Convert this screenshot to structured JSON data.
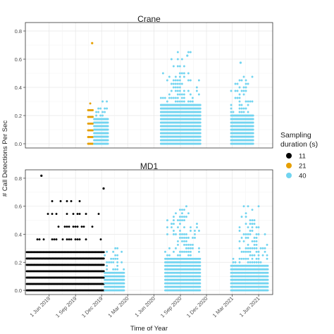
{
  "chart_data": {
    "type": "scatter",
    "x_type": "date",
    "xlabel": "Time of Year",
    "ylabel": "# Call Detections Per Sec",
    "xlim": [
      "2019-03-10",
      "2021-07-20"
    ],
    "ylim": [
      -0.03,
      0.86
    ],
    "x_ticks": [
      {
        "date": "2019-06-01",
        "label": "1 Jun 2019"
      },
      {
        "date": "2019-09-01",
        "label": "1 Sep 2019"
      },
      {
        "date": "2019-12-01",
        "label": "1 Dec 2019"
      },
      {
        "date": "2020-03-01",
        "label": "1 Mar 2020"
      },
      {
        "date": "2020-06-01",
        "label": "1 Jun 2020"
      },
      {
        "date": "2020-09-01",
        "label": "1 Sep 2020"
      },
      {
        "date": "2020-12-01",
        "label": "1 Dec 2020"
      },
      {
        "date": "2021-03-01",
        "label": "1 Mar 2021"
      },
      {
        "date": "2021-06-01",
        "label": "1 Jun 2021"
      }
    ],
    "y_ticks": [
      0.0,
      0.2,
      0.4,
      0.6,
      0.8
    ],
    "y_tick_labels": [
      "0.0",
      "0.2",
      "0.4",
      "0.6",
      "0.8"
    ],
    "grid": true,
    "legend": {
      "title": "Sampling duration (s)",
      "position": "right",
      "items": [
        {
          "label": "11",
          "color": "#000000"
        },
        {
          "label": "21",
          "color": "#E69F00"
        },
        {
          "label": "40",
          "color": "#72D4F0"
        }
      ]
    },
    "panels": [
      {
        "strip": "Crane",
        "series": [
          {
            "name": "21",
            "color": "#E69F00",
            "segments": [
              {
                "start": "2019-10-15",
                "end": "2019-11-03",
                "levels": [
                  0,
                  0.0476,
                  0.0952,
                  0.1429,
                  0.1905,
                  0.2381,
                  0.2857,
                  0.3333,
                  0.381,
                  0.4286
                ],
                "sparse_from": 0.24
              }
            ],
            "extra": [
              {
                "x": "2019-10-29",
                "y": 0.714
              }
            ]
          },
          {
            "name": "40",
            "color": "#72D4F0",
            "segments": [
              {
                "start": "2019-11-05",
                "end": "2019-12-26",
                "levels": [
                  0,
                  0.025,
                  0.05,
                  0.075,
                  0.1,
                  0.125,
                  0.15,
                  0.175,
                  0.2,
                  0.225,
                  0.25,
                  0.3
                ],
                "sparse_from": 0.18
              },
              {
                "start": "2020-06-25",
                "end": "2020-11-10",
                "levels": [
                  0,
                  0.025,
                  0.05,
                  0.075,
                  0.1,
                  0.125,
                  0.15,
                  0.175,
                  0.2,
                  0.225,
                  0.25,
                  0.275,
                  0.3,
                  0.325,
                  0.35,
                  0.375,
                  0.4,
                  0.425,
                  0.45,
                  0.475,
                  0.5,
                  0.55,
                  0.6,
                  0.65
                ],
                "sparse_from": 0.3
              },
              {
                "start": "2021-02-25",
                "end": "2021-05-15",
                "levels": [
                  0,
                  0.025,
                  0.05,
                  0.075,
                  0.1,
                  0.125,
                  0.15,
                  0.175,
                  0.2,
                  0.225,
                  0.25,
                  0.275,
                  0.3,
                  0.325,
                  0.35,
                  0.375,
                  0.4,
                  0.425,
                  0.45,
                  0.475
                ],
                "sparse_from": 0.22
              }
            ],
            "extra": [
              {
                "x": "2020-09-25",
                "y": 0.625
              },
              {
                "x": "2021-03-30",
                "y": 0.575
              }
            ]
          }
        ]
      },
      {
        "strip": "MD1",
        "series": [
          {
            "name": "11",
            "color": "#000000",
            "segments": [
              {
                "start": "2019-03-15",
                "end": "2019-12-10",
                "levels": [
                  0,
                  0.0455,
                  0.0909,
                  0.1364,
                  0.1818,
                  0.2273,
                  0.2727,
                  0.3636,
                  0.4545,
                  0.5455,
                  0.6364
                ],
                "sparse_from": 0.3
              }
            ],
            "extra": [
              {
                "x": "2019-05-05",
                "y": 0.818
              },
              {
                "x": "2019-12-08",
                "y": 0.727
              }
            ]
          },
          {
            "name": "40",
            "color": "#72D4F0",
            "segments": [
              {
                "start": "2019-12-12",
                "end": "2020-02-20",
                "levels": [
                  0,
                  0.025,
                  0.05,
                  0.075,
                  0.1,
                  0.125,
                  0.15,
                  0.175,
                  0.2,
                  0.225,
                  0.25,
                  0.275,
                  0.3
                ],
                "sparse_from": 0.15
              },
              {
                "start": "2020-07-10",
                "end": "2020-11-10",
                "levels": [
                  0,
                  0.025,
                  0.05,
                  0.075,
                  0.1,
                  0.125,
                  0.15,
                  0.175,
                  0.2,
                  0.225,
                  0.25,
                  0.275,
                  0.3,
                  0.325,
                  0.35,
                  0.375,
                  0.4,
                  0.425,
                  0.45,
                  0.475,
                  0.5,
                  0.525,
                  0.55,
                  0.575,
                  0.6
                ],
                "sparse_from": 0.25
              },
              {
                "start": "2021-02-25",
                "end": "2021-07-05",
                "levels": [
                  0,
                  0.025,
                  0.05,
                  0.075,
                  0.1,
                  0.125,
                  0.15,
                  0.175,
                  0.2,
                  0.225,
                  0.25,
                  0.275,
                  0.3,
                  0.325,
                  0.35,
                  0.375,
                  0.4,
                  0.425,
                  0.45,
                  0.475,
                  0.5,
                  0.525,
                  0.55,
                  0.575,
                  0.6
                ],
                "sparse_from": 0.2
              }
            ],
            "extra": []
          }
        ]
      }
    ]
  }
}
